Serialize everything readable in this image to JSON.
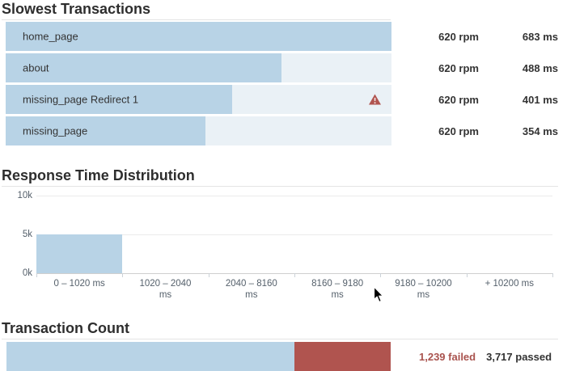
{
  "slowest_transactions": {
    "title": "Slowest Transactions",
    "rows": [
      {
        "label": "home_page",
        "rpm": "620 rpm",
        "time": "683 ms",
        "time_ms": 683,
        "warning": false
      },
      {
        "label": "about",
        "rpm": "620 rpm",
        "time": "488 ms",
        "time_ms": 488,
        "warning": false
      },
      {
        "label": "missing_page Redirect 1",
        "rpm": "620 rpm",
        "time": "401 ms",
        "time_ms": 401,
        "warning": true
      },
      {
        "label": "missing_page",
        "rpm": "620 rpm",
        "time": "354 ms",
        "time_ms": 354,
        "warning": false
      }
    ]
  },
  "chart_data": {
    "type": "bar",
    "title": "Response Time Distribution",
    "categories": [
      "0 – 1020 ms",
      "1020 – 2040 ms",
      "2040 – 8160 ms",
      "8160 – 9180 ms",
      "9180 – 10200 ms",
      "+ 10200 ms"
    ],
    "values": [
      4956,
      0,
      0,
      0,
      0,
      0
    ],
    "xlabel": "",
    "ylabel": "",
    "ylim": [
      0,
      10000
    ],
    "ytick_labels": [
      "10k",
      "5k",
      "0k"
    ],
    "grid": true,
    "legend_position": "none",
    "bar_color": "#b8d3e6"
  },
  "transaction_count": {
    "title": "Transaction Count",
    "failed": 1239,
    "passed": 3717,
    "failed_label": "1,239 failed",
    "passed_label": "3,717 passed"
  },
  "icons": {
    "warning": "warning-triangle-icon",
    "cursor": "mouse-cursor"
  },
  "colors": {
    "bar_fill_blue": "#b8d3e6",
    "bar_track": "#eaf1f6",
    "failed_red": "#b0544f",
    "failed_text_red": "#a9534e",
    "title_text": "#2e2e2e",
    "axis_text": "#55606b"
  }
}
